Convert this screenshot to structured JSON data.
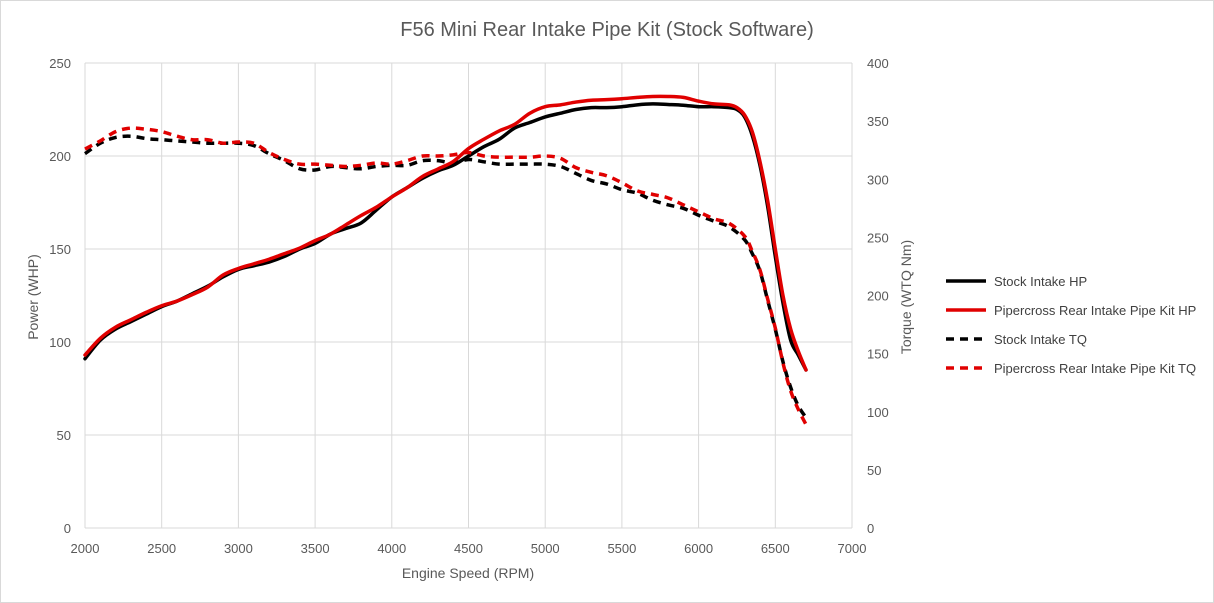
{
  "chart_data": {
    "type": "line",
    "title": "F56 Mini Rear Intake Pipe Kit (Stock Software)",
    "xlabel": "Engine Speed (RPM)",
    "ylabel": "Power (WHP)",
    "y2label": "Torque (WTQ Nm)",
    "xlim": [
      2000,
      7000
    ],
    "ylim": [
      0,
      250
    ],
    "y2lim": [
      0,
      400
    ],
    "x_ticks": [
      "2000",
      "2500",
      "3000",
      "3500",
      "4000",
      "4500",
      "5000",
      "5500",
      "6000",
      "6500",
      "7000"
    ],
    "y_ticks": [
      "0",
      "50",
      "100",
      "150",
      "200",
      "250"
    ],
    "y2_ticks": [
      "0",
      "50",
      "100",
      "150",
      "200",
      "250",
      "300",
      "350",
      "400"
    ],
    "grid": true,
    "legend_position": "right",
    "series": [
      {
        "name": "Stock Intake HP",
        "axis": "left",
        "color": "#000000",
        "dashed": false,
        "points": [
          [
            2000,
            91
          ],
          [
            2100,
            101
          ],
          [
            2200,
            107
          ],
          [
            2300,
            111
          ],
          [
            2400,
            115
          ],
          [
            2500,
            119
          ],
          [
            2600,
            122
          ],
          [
            2700,
            126
          ],
          [
            2800,
            130
          ],
          [
            2900,
            135
          ],
          [
            3000,
            139
          ],
          [
            3100,
            141
          ],
          [
            3200,
            143
          ],
          [
            3300,
            146
          ],
          [
            3400,
            150
          ],
          [
            3500,
            153
          ],
          [
            3600,
            158
          ],
          [
            3700,
            161
          ],
          [
            3800,
            164
          ],
          [
            3900,
            171
          ],
          [
            4000,
            178
          ],
          [
            4100,
            183
          ],
          [
            4200,
            188
          ],
          [
            4300,
            192
          ],
          [
            4400,
            195
          ],
          [
            4500,
            200
          ],
          [
            4600,
            205
          ],
          [
            4700,
            209
          ],
          [
            4800,
            215
          ],
          [
            4900,
            218
          ],
          [
            5000,
            221
          ],
          [
            5100,
            223
          ],
          [
            5200,
            225
          ],
          [
            5300,
            226
          ],
          [
            5400,
            226
          ],
          [
            5500,
            226.5
          ],
          [
            5600,
            227.5
          ],
          [
            5700,
            228
          ],
          [
            5800,
            227.7
          ],
          [
            5900,
            227.3
          ],
          [
            6000,
            226.5
          ],
          [
            6100,
            226.5
          ],
          [
            6200,
            226
          ],
          [
            6250,
            225
          ],
          [
            6300,
            221
          ],
          [
            6350,
            211
          ],
          [
            6400,
            195
          ],
          [
            6450,
            173
          ],
          [
            6500,
            146
          ],
          [
            6550,
            121
          ],
          [
            6600,
            101
          ],
          [
            6650,
            93
          ],
          [
            6700,
            85
          ]
        ]
      },
      {
        "name": "Pipercross Rear Intake Pipe Kit HP",
        "axis": "left",
        "color": "#e00000",
        "dashed": false,
        "points": [
          [
            2000,
            93
          ],
          [
            2100,
            102
          ],
          [
            2200,
            108
          ],
          [
            2300,
            112
          ],
          [
            2400,
            116
          ],
          [
            2500,
            119.5
          ],
          [
            2600,
            122
          ],
          [
            2700,
            125.5
          ],
          [
            2800,
            129.5
          ],
          [
            2900,
            136
          ],
          [
            3000,
            139.5
          ],
          [
            3100,
            142
          ],
          [
            3200,
            144.5
          ],
          [
            3300,
            147.5
          ],
          [
            3400,
            150.5
          ],
          [
            3500,
            154.5
          ],
          [
            3600,
            158
          ],
          [
            3700,
            163
          ],
          [
            3800,
            168
          ],
          [
            3900,
            172.5
          ],
          [
            4000,
            178
          ],
          [
            4100,
            183
          ],
          [
            4200,
            189
          ],
          [
            4300,
            193
          ],
          [
            4400,
            197
          ],
          [
            4500,
            204
          ],
          [
            4600,
            209
          ],
          [
            4700,
            213.5
          ],
          [
            4800,
            217
          ],
          [
            4900,
            223
          ],
          [
            5000,
            226.5
          ],
          [
            5100,
            227.5
          ],
          [
            5200,
            229
          ],
          [
            5300,
            230
          ],
          [
            5400,
            230.3
          ],
          [
            5500,
            230.8
          ],
          [
            5600,
            231.5
          ],
          [
            5700,
            232
          ],
          [
            5800,
            232
          ],
          [
            5900,
            231.5
          ],
          [
            6000,
            229.5
          ],
          [
            6100,
            228
          ],
          [
            6200,
            227.5
          ],
          [
            6250,
            226
          ],
          [
            6300,
            222
          ],
          [
            6350,
            213
          ],
          [
            6400,
            197
          ],
          [
            6450,
            176
          ],
          [
            6500,
            150
          ],
          [
            6550,
            125
          ],
          [
            6600,
            107
          ],
          [
            6650,
            95
          ],
          [
            6700,
            85
          ]
        ]
      },
      {
        "name": "Stock Intake TQ",
        "axis": "right",
        "color": "#000000",
        "dashed": true,
        "points": [
          [
            2000,
            322
          ],
          [
            2100,
            331
          ],
          [
            2200,
            336
          ],
          [
            2300,
            337
          ],
          [
            2400,
            335
          ],
          [
            2500,
            334
          ],
          [
            2600,
            333
          ],
          [
            2700,
            332
          ],
          [
            2800,
            331
          ],
          [
            2900,
            331
          ],
          [
            3000,
            331
          ],
          [
            3100,
            329
          ],
          [
            3200,
            322
          ],
          [
            3300,
            316
          ],
          [
            3400,
            309
          ],
          [
            3500,
            308
          ],
          [
            3600,
            311
          ],
          [
            3700,
            310
          ],
          [
            3800,
            309
          ],
          [
            3900,
            311
          ],
          [
            4000,
            312
          ],
          [
            4100,
            312
          ],
          [
            4200,
            316
          ],
          [
            4300,
            316
          ],
          [
            4400,
            314
          ],
          [
            4500,
            317
          ],
          [
            4600,
            315
          ],
          [
            4700,
            313
          ],
          [
            4800,
            313
          ],
          [
            4900,
            313
          ],
          [
            5000,
            313
          ],
          [
            5100,
            311
          ],
          [
            5200,
            305
          ],
          [
            5300,
            299
          ],
          [
            5400,
            296
          ],
          [
            5500,
            291
          ],
          [
            5600,
            288
          ],
          [
            5700,
            282
          ],
          [
            5800,
            278
          ],
          [
            5900,
            275
          ],
          [
            6000,
            269
          ],
          [
            6100,
            264
          ],
          [
            6200,
            259
          ],
          [
            6300,
            248
          ],
          [
            6350,
            236
          ],
          [
            6400,
            221
          ],
          [
            6450,
            196
          ],
          [
            6500,
            171
          ],
          [
            6550,
            143
          ],
          [
            6600,
            121
          ],
          [
            6650,
            105
          ],
          [
            6700,
            95
          ]
        ]
      },
      {
        "name": "Pipercross Rear Intake Pipe Kit TQ",
        "axis": "right",
        "color": "#e00000",
        "dashed": true,
        "points": [
          [
            2000,
            326
          ],
          [
            2100,
            333
          ],
          [
            2200,
            341
          ],
          [
            2300,
            344
          ],
          [
            2400,
            343
          ],
          [
            2500,
            341
          ],
          [
            2600,
            337
          ],
          [
            2700,
            334
          ],
          [
            2800,
            334
          ],
          [
            2900,
            331
          ],
          [
            3000,
            332
          ],
          [
            3100,
            331
          ],
          [
            3200,
            323
          ],
          [
            3300,
            317
          ],
          [
            3400,
            313
          ],
          [
            3500,
            313
          ],
          [
            3600,
            312
          ],
          [
            3700,
            311
          ],
          [
            3800,
            312
          ],
          [
            3900,
            314
          ],
          [
            4000,
            313
          ],
          [
            4100,
            316
          ],
          [
            4200,
            320
          ],
          [
            4300,
            320
          ],
          [
            4400,
            321
          ],
          [
            4500,
            323
          ],
          [
            4600,
            320
          ],
          [
            4700,
            319
          ],
          [
            4800,
            319
          ],
          [
            4900,
            319
          ],
          [
            5000,
            320
          ],
          [
            5100,
            318
          ],
          [
            5200,
            310
          ],
          [
            5300,
            306
          ],
          [
            5400,
            303
          ],
          [
            5500,
            297
          ],
          [
            5600,
            290
          ],
          [
            5700,
            287
          ],
          [
            5800,
            284
          ],
          [
            5900,
            278
          ],
          [
            6000,
            272
          ],
          [
            6100,
            266
          ],
          [
            6200,
            262
          ],
          [
            6300,
            251
          ],
          [
            6350,
            238
          ],
          [
            6400,
            222
          ],
          [
            6450,
            197
          ],
          [
            6500,
            172
          ],
          [
            6550,
            142
          ],
          [
            6600,
            118
          ],
          [
            6650,
            102
          ],
          [
            6700,
            89
          ]
        ]
      }
    ]
  }
}
